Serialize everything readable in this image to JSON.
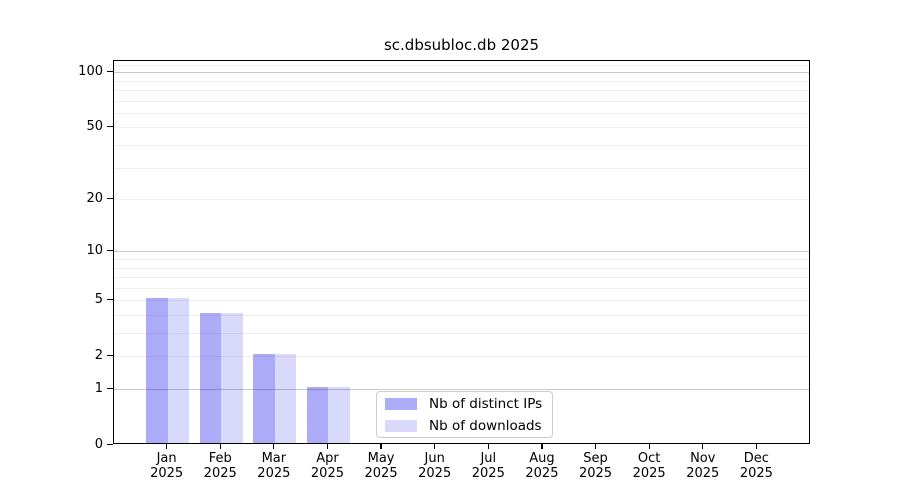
{
  "chart_data": {
    "type": "bar",
    "title": "sc.dbsubloc.db 2025",
    "categories": [
      "Jan",
      "Feb",
      "Mar",
      "Apr",
      "May",
      "Jun",
      "Jul",
      "Aug",
      "Sep",
      "Oct",
      "Nov",
      "Dec"
    ],
    "year_label": "2025",
    "series": [
      {
        "name": "Nb of distinct IPs",
        "color": "#0000E654",
        "values": [
          5,
          4,
          2,
          1,
          0,
          0,
          0,
          0,
          0,
          0,
          0,
          0
        ]
      },
      {
        "name": "Nb of downloads",
        "color": "#0000E626",
        "values": [
          5,
          4,
          2,
          1,
          0,
          0,
          0,
          0,
          0,
          0,
          0,
          0
        ]
      }
    ],
    "yscale": "log1p",
    "ylim": [
      0,
      115
    ],
    "yticks": [
      100,
      50,
      20,
      10,
      5,
      2,
      1,
      0
    ],
    "major_gridlines": [
      1,
      10,
      100
    ],
    "minor_gridlines": [
      2,
      3,
      4,
      5,
      6,
      7,
      8,
      9,
      20,
      30,
      40,
      50,
      60,
      70,
      80,
      90,
      110
    ],
    "grid": true,
    "legend_position": "lower-center-inside",
    "colors": {
      "background": "#ffffff",
      "axis": "#000000",
      "text": "#000000",
      "major_grid": "#c9c9c9",
      "minor_grid": "#efefef"
    }
  }
}
